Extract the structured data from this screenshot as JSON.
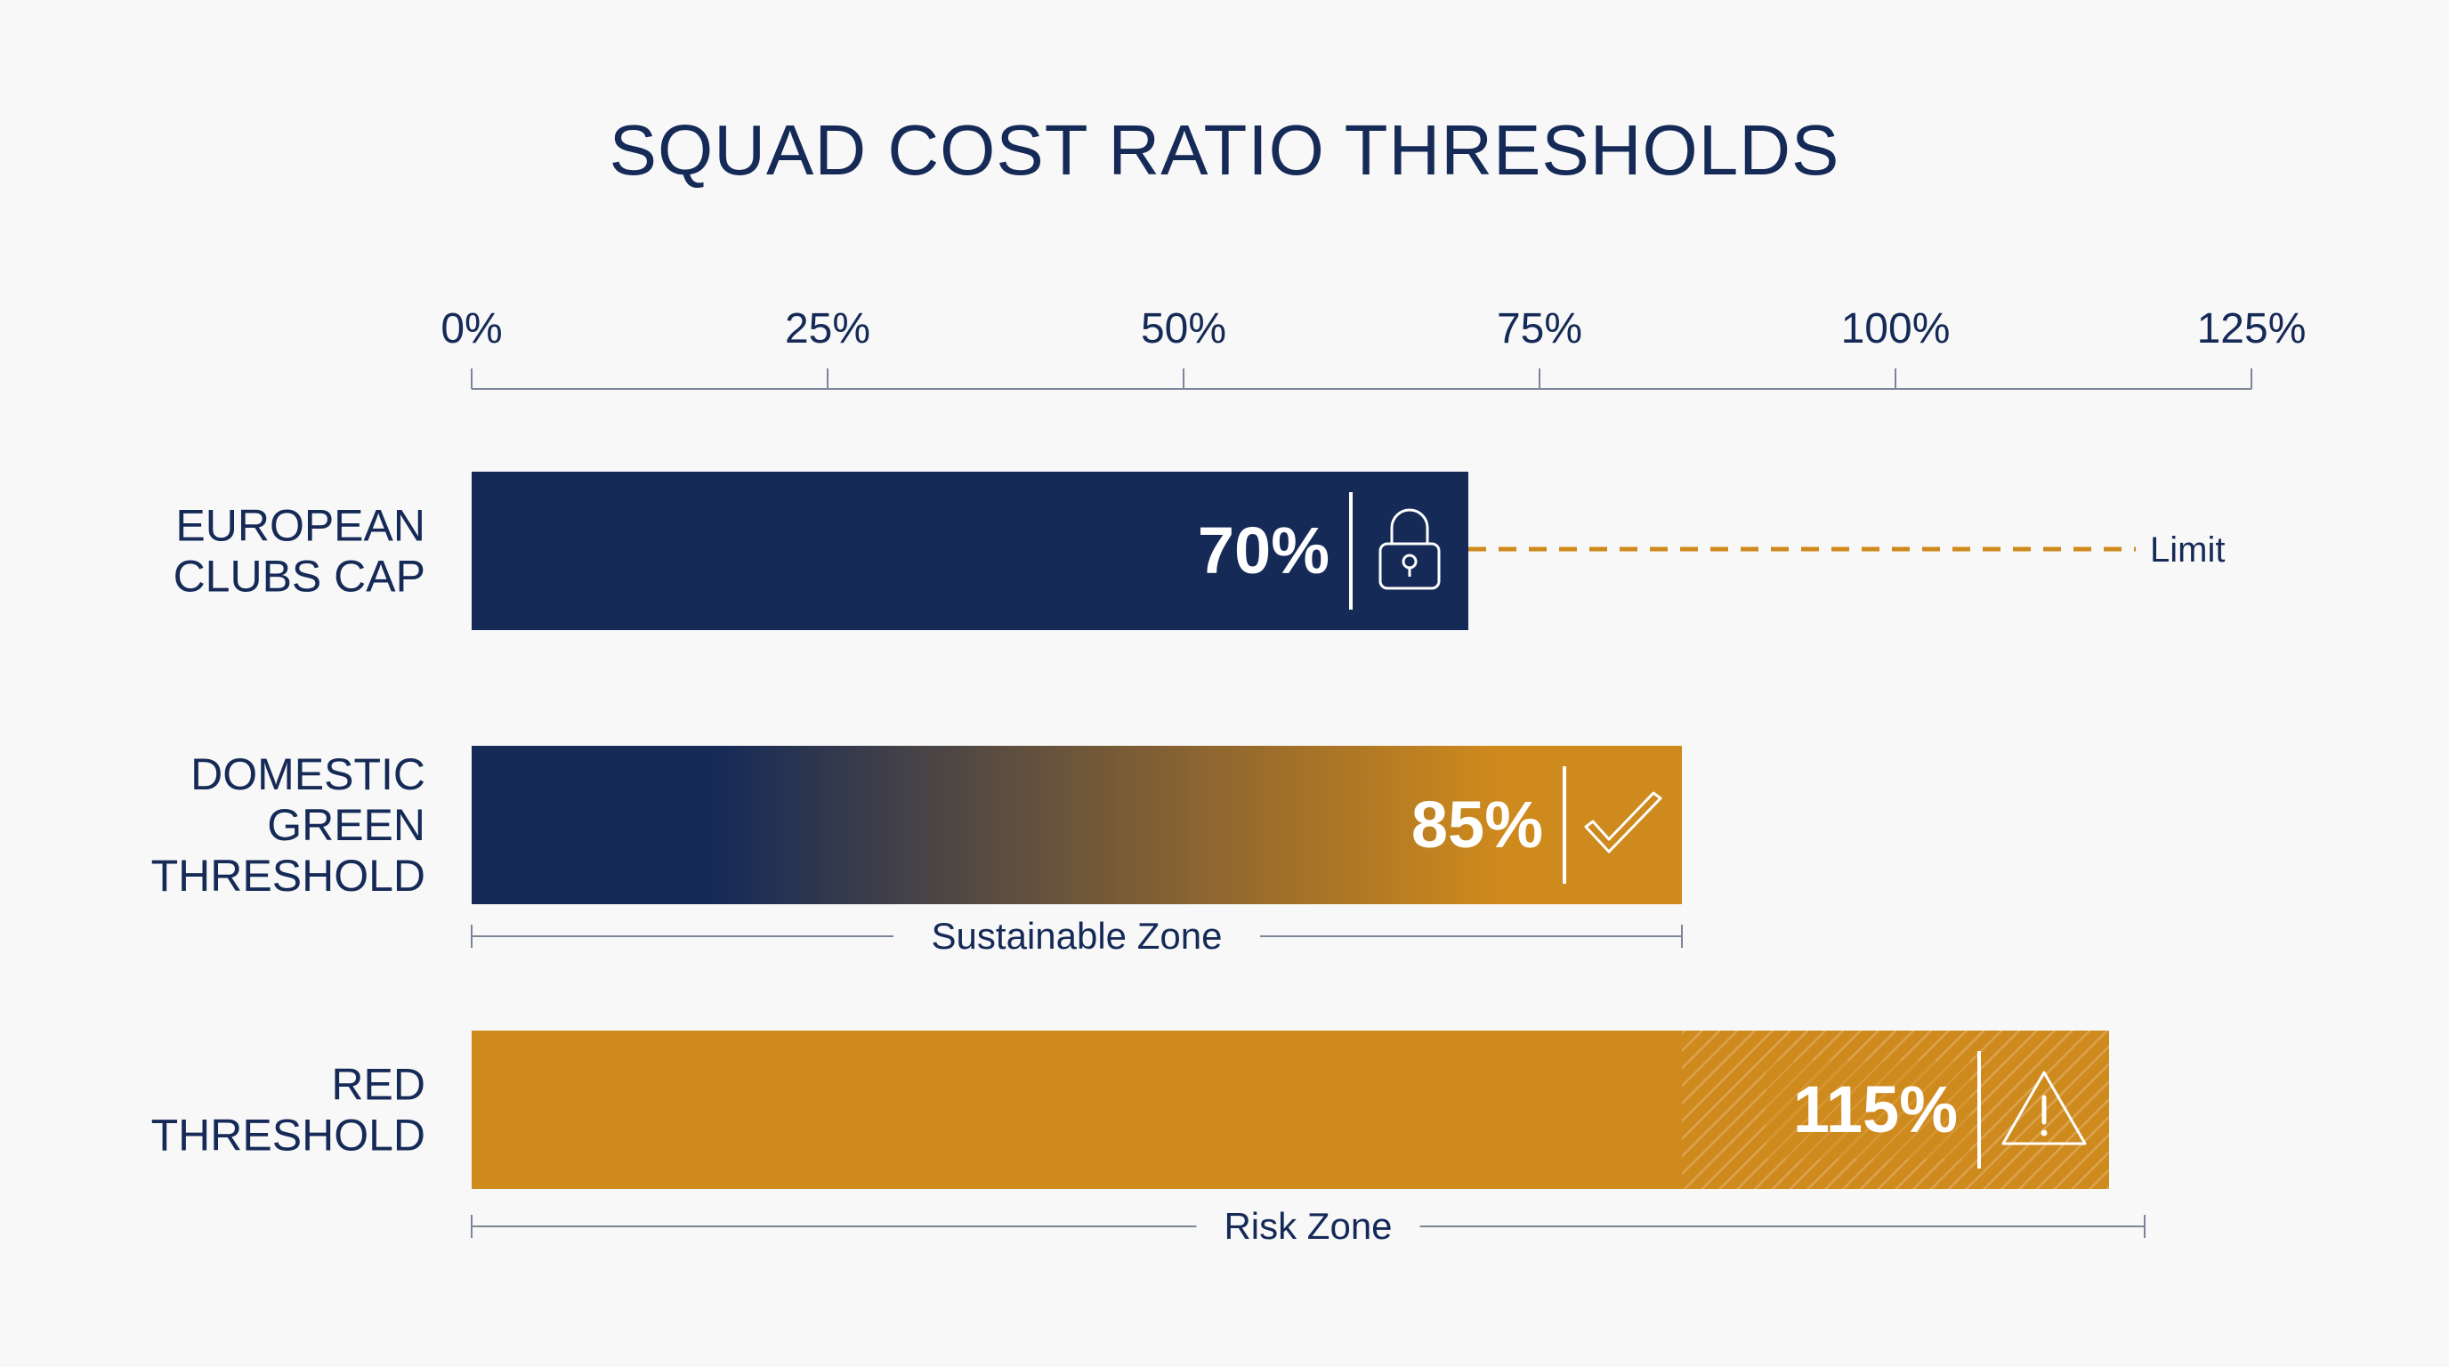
{
  "chart_data": {
    "type": "bar",
    "orientation": "horizontal",
    "title": "SQUAD COST RATIO THRESHOLDS",
    "xlim": [
      0,
      125
    ],
    "x_ticks": [
      0,
      25,
      50,
      75,
      100,
      125
    ],
    "x_tick_labels": [
      "0%",
      "25%",
      "50%",
      "75%",
      "100%",
      "125%"
    ],
    "grid": false,
    "categories": [
      "EUROPEAN CLUBS CAP",
      "DOMESTIC GREEN THRESHOLD",
      "RED THRESHOLD"
    ],
    "category_lines": [
      [
        "EUROPEAN",
        "CLUBS CAP"
      ],
      [
        "DOMESTIC",
        "GREEN",
        "THRESHOLD"
      ],
      [
        "RED",
        "THRESHOLD"
      ]
    ],
    "values": [
      70,
      85,
      115
    ],
    "value_labels": [
      "70%",
      "85%",
      "115%"
    ],
    "bar_icons": [
      "lock-icon",
      "checkmark-icon",
      "warning-icon"
    ],
    "annotations": {
      "limit": {
        "label": "Limit",
        "value": 70
      },
      "sustainable_zone": {
        "label": "Sustainable Zone",
        "from": 0,
        "to": 85
      },
      "risk_zone": {
        "label": "Risk Zone",
        "from": 0,
        "to": 117.5
      },
      "hatched_range": {
        "from": 85,
        "to": 127
      }
    },
    "colors": {
      "navy": "#152a57",
      "gold": "#cf8a1d",
      "text": "#152a57",
      "axis": "#7c8598",
      "background": "#f8f8f8"
    }
  }
}
